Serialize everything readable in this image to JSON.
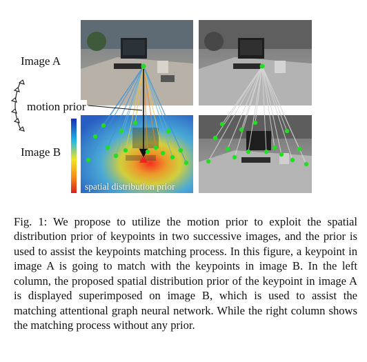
{
  "figure": {
    "image_a_label": "Image A",
    "image_b_label": "Image B",
    "motion_prior_label": "motion prior",
    "overlay_label": "spatial distribution prior"
  },
  "caption": {
    "text": "Fig. 1: We propose to utilize the motion prior to exploit the spatial distribution prior of keypoints in two successive images, and the prior is used to assist the keypoints matching process. In this figure, a keypoint in image A is going to match with the keypoints in image B. In the left column, the proposed spatial distribution prior of the keypoint in image A is displayed superimposed on image B, which is used to assist the matching attentional graph neural network. While the right column shows the matching process without any prior."
  },
  "colors": {
    "keypoint": "#22dd22",
    "prior_peak": "#ee2222",
    "arrow": "#111111"
  }
}
